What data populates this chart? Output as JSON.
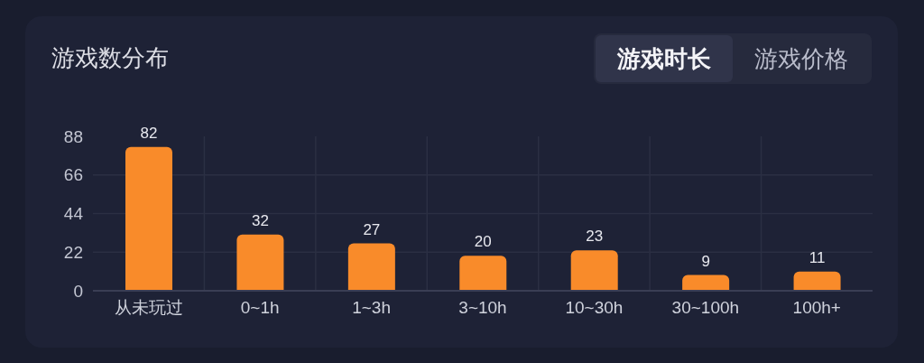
{
  "chart_data": {
    "type": "bar",
    "title": "游戏数分布",
    "annotations": [
      "游戏时长",
      "游戏价格"
    ],
    "categories": [
      "从未玩过",
      "0~1h",
      "1~3h",
      "3~10h",
      "10~30h",
      "30~100h",
      "100h+"
    ],
    "values": [
      82,
      32,
      27,
      20,
      23,
      9,
      11
    ],
    "color": "#f98b2a",
    "ylim": [
      0,
      88
    ],
    "yticks": [
      0,
      22,
      44,
      66,
      88
    ],
    "grid": true,
    "data_labels": true
  }
}
